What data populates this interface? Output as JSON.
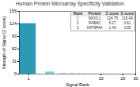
{
  "chart_data": {
    "type": "bar",
    "title": "Human Protein Microarray Specificity Validation",
    "xlabel": "Signal Rank",
    "ylabel": "Strength of Signal (Z score)",
    "x": [
      1,
      2,
      3,
      4,
      5,
      6,
      7,
      8,
      9,
      10,
      11,
      12,
      13,
      14,
      15,
      16,
      17,
      18,
      19,
      20,
      21,
      22,
      23,
      24,
      25,
      26,
      27,
      28,
      29,
      30
    ],
    "values": [
      124.75,
      5.27,
      1.48,
      1.2,
      1.0,
      0.9,
      0.8,
      0.7,
      0.65,
      0.6,
      0.55,
      0.5,
      0.48,
      0.45,
      0.42,
      0.4,
      0.38,
      0.36,
      0.34,
      0.32,
      0.3,
      0.28,
      0.26,
      0.24,
      0.22,
      0.2,
      0.18,
      0.16,
      0.14,
      0.12
    ],
    "colors": [
      "#2a9ab5",
      "#7ecfe0",
      "#7ecfe0",
      "#7ecfe0",
      "#7ecfe0",
      "#7ecfe0",
      "#7ecfe0",
      "#7ecfe0",
      "#7ecfe0",
      "#7ecfe0",
      "#7ecfe0",
      "#7ecfe0",
      "#7ecfe0",
      "#7ecfe0",
      "#7ecfe0",
      "#7ecfe0",
      "#7ecfe0",
      "#7ecfe0",
      "#7ecfe0",
      "#7ecfe0",
      "#7ecfe0",
      "#7ecfe0",
      "#7ecfe0",
      "#7ecfe0",
      "#7ecfe0",
      "#7ecfe0",
      "#7ecfe0",
      "#7ecfe0",
      "#7ecfe0",
      "#7ecfe0"
    ],
    "log": "x",
    "xlim": [
      0.75,
      30
    ],
    "xticks": [
      1,
      10,
      20,
      30
    ],
    "ylim": [
      0,
      155
    ],
    "yticks": [
      0,
      31,
      62,
      93,
      124,
      155
    ],
    "grid": false,
    "table": {
      "header": [
        "Rank",
        "Protein",
        "Z score",
        "S score"
      ],
      "rows": [
        [
          "1",
          "NKX3.1",
          "124.75",
          "119.49"
        ],
        [
          "2",
          "RAB8C",
          "5.27",
          "3.61"
        ],
        [
          "3",
          "KRT8PA4",
          "1.48",
          "3.05"
        ]
      ]
    }
  }
}
